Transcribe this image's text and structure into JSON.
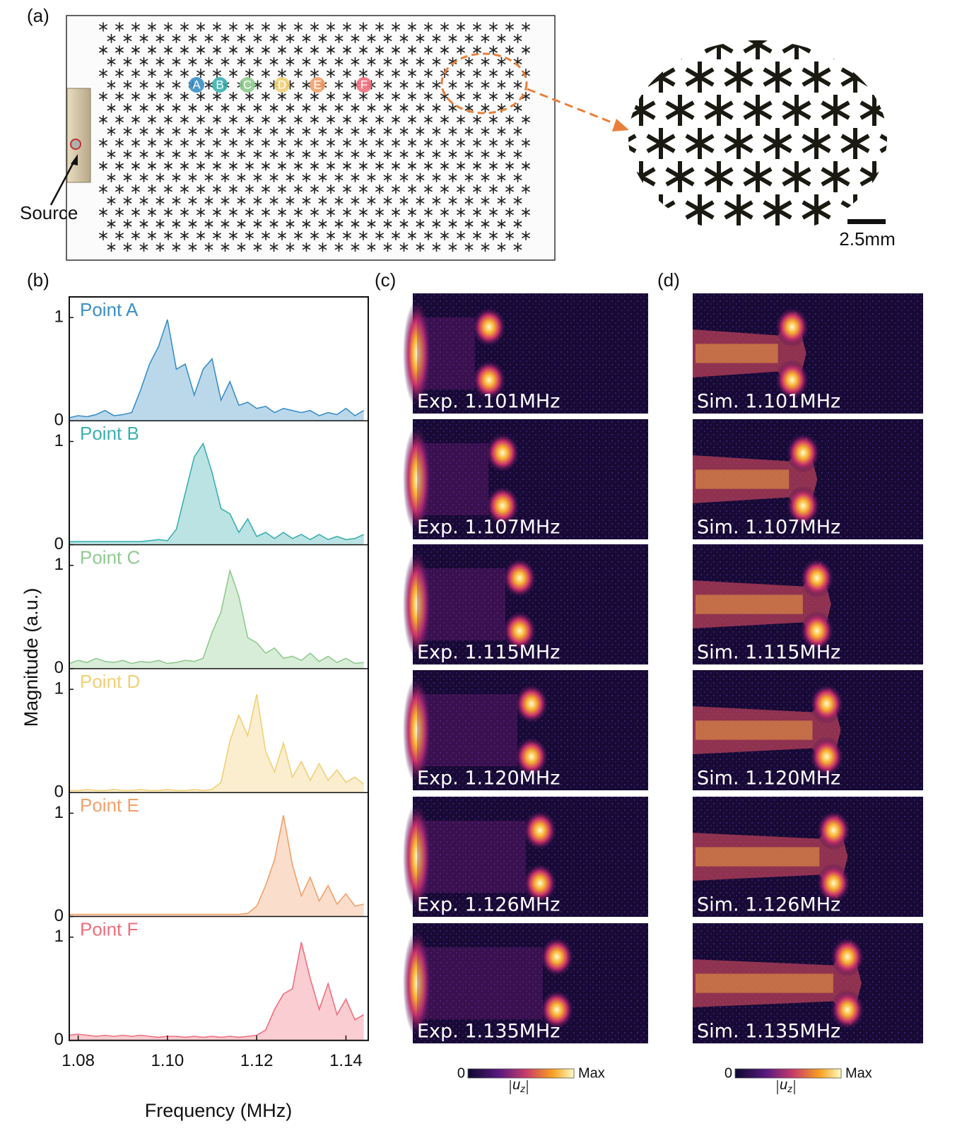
{
  "figure": {
    "panel_a": {
      "label": "(a)",
      "source_label": "Source",
      "points": [
        "A",
        "B",
        "C",
        "D",
        "E",
        "F"
      ],
      "scale_bar": "2.5mm"
    },
    "panel_c": {
      "label": "(c)",
      "captions": [
        "Exp. 1.101MHz",
        "Exp. 1.107MHz",
        "Exp. 1.115MHz",
        "Exp. 1.120MHz",
        "Exp. 1.126MHz",
        "Exp. 1.135MHz"
      ],
      "colorbar": {
        "min": "0",
        "max": "Max",
        "quantity": "u",
        "subscript": "z"
      }
    },
    "panel_d": {
      "label": "(d)",
      "captions": [
        "Sim. 1.101MHz",
        "Sim. 1.107MHz",
        "Sim. 1.115MHz",
        "Sim. 1.120MHz",
        "Sim. 1.126MHz",
        "Sim. 1.135MHz"
      ],
      "colorbar": {
        "min": "0",
        "max": "Max",
        "quantity": "u",
        "subscript": "z"
      }
    }
  },
  "chart_data": {
    "type": "area",
    "label": "(b)",
    "xlabel": "Frequency (MHz)",
    "ylabel": "Magnitude (a.u.)",
    "x": [
      1.078,
      1.08,
      1.082,
      1.084,
      1.086,
      1.088,
      1.09,
      1.092,
      1.094,
      1.096,
      1.098,
      1.1,
      1.102,
      1.104,
      1.106,
      1.108,
      1.11,
      1.112,
      1.114,
      1.116,
      1.118,
      1.12,
      1.122,
      1.124,
      1.126,
      1.128,
      1.13,
      1.132,
      1.134,
      1.136,
      1.138,
      1.14,
      1.142,
      1.144
    ],
    "xlim": [
      1.078,
      1.145
    ],
    "xticks": [
      1.08,
      {
        "value": 1.1,
        "label": "1.10"
      },
      1.12,
      1.14
    ],
    "ylim": [
      0,
      1.2
    ],
    "yticks": [
      0,
      1
    ],
    "series": [
      {
        "name": "Point A",
        "color": "#3b8fc6",
        "values": [
          0.03,
          0.05,
          0.04,
          0.06,
          0.1,
          0.05,
          0.06,
          0.08,
          0.3,
          0.55,
          0.72,
          0.98,
          0.5,
          0.55,
          0.25,
          0.5,
          0.6,
          0.2,
          0.38,
          0.15,
          0.18,
          0.12,
          0.14,
          0.08,
          0.12,
          0.1,
          0.08,
          0.1,
          0.05,
          0.08,
          0.06,
          0.12,
          0.05,
          0.1
        ]
      },
      {
        "name": "Point B",
        "color": "#3bb0b0",
        "values": [
          0.03,
          0.03,
          0.03,
          0.03,
          0.03,
          0.03,
          0.03,
          0.03,
          0.03,
          0.04,
          0.05,
          0.04,
          0.15,
          0.5,
          0.85,
          0.98,
          0.7,
          0.35,
          0.3,
          0.12,
          0.25,
          0.08,
          0.12,
          0.06,
          0.12,
          0.06,
          0.1,
          0.05,
          0.1,
          0.05,
          0.08,
          0.05,
          0.06,
          0.1
        ]
      },
      {
        "name": "Point C",
        "color": "#8fcb8f",
        "values": [
          0.05,
          0.08,
          0.06,
          0.1,
          0.07,
          0.06,
          0.08,
          0.05,
          0.07,
          0.06,
          0.08,
          0.05,
          0.06,
          0.08,
          0.07,
          0.1,
          0.35,
          0.55,
          0.95,
          0.7,
          0.3,
          0.25,
          0.15,
          0.2,
          0.1,
          0.12,
          0.08,
          0.15,
          0.07,
          0.12,
          0.06,
          0.1,
          0.05,
          0.06
        ]
      },
      {
        "name": "Point D",
        "color": "#f2cf75",
        "values": [
          0.02,
          0.02,
          0.03,
          0.02,
          0.02,
          0.03,
          0.02,
          0.02,
          0.03,
          0.02,
          0.02,
          0.03,
          0.02,
          0.02,
          0.03,
          0.02,
          0.03,
          0.1,
          0.5,
          0.75,
          0.55,
          0.95,
          0.4,
          0.2,
          0.48,
          0.15,
          0.3,
          0.12,
          0.28,
          0.12,
          0.22,
          0.1,
          0.15,
          0.08
        ]
      },
      {
        "name": "Point E",
        "color": "#f2a06a",
        "values": [
          0.02,
          0.02,
          0.02,
          0.02,
          0.02,
          0.02,
          0.02,
          0.02,
          0.02,
          0.02,
          0.02,
          0.02,
          0.02,
          0.02,
          0.02,
          0.02,
          0.02,
          0.02,
          0.02,
          0.02,
          0.03,
          0.1,
          0.3,
          0.55,
          0.98,
          0.5,
          0.2,
          0.38,
          0.15,
          0.3,
          0.12,
          0.22,
          0.1,
          0.12
        ]
      },
      {
        "name": "Point F",
        "color": "#ef6f7c",
        "values": [
          0.05,
          0.06,
          0.05,
          0.04,
          0.05,
          0.04,
          0.05,
          0.04,
          0.05,
          0.04,
          0.03,
          0.04,
          0.04,
          0.03,
          0.04,
          0.03,
          0.04,
          0.03,
          0.04,
          0.03,
          0.04,
          0.05,
          0.1,
          0.3,
          0.45,
          0.5,
          0.95,
          0.6,
          0.3,
          0.55,
          0.25,
          0.4,
          0.2,
          0.25
        ]
      }
    ]
  }
}
